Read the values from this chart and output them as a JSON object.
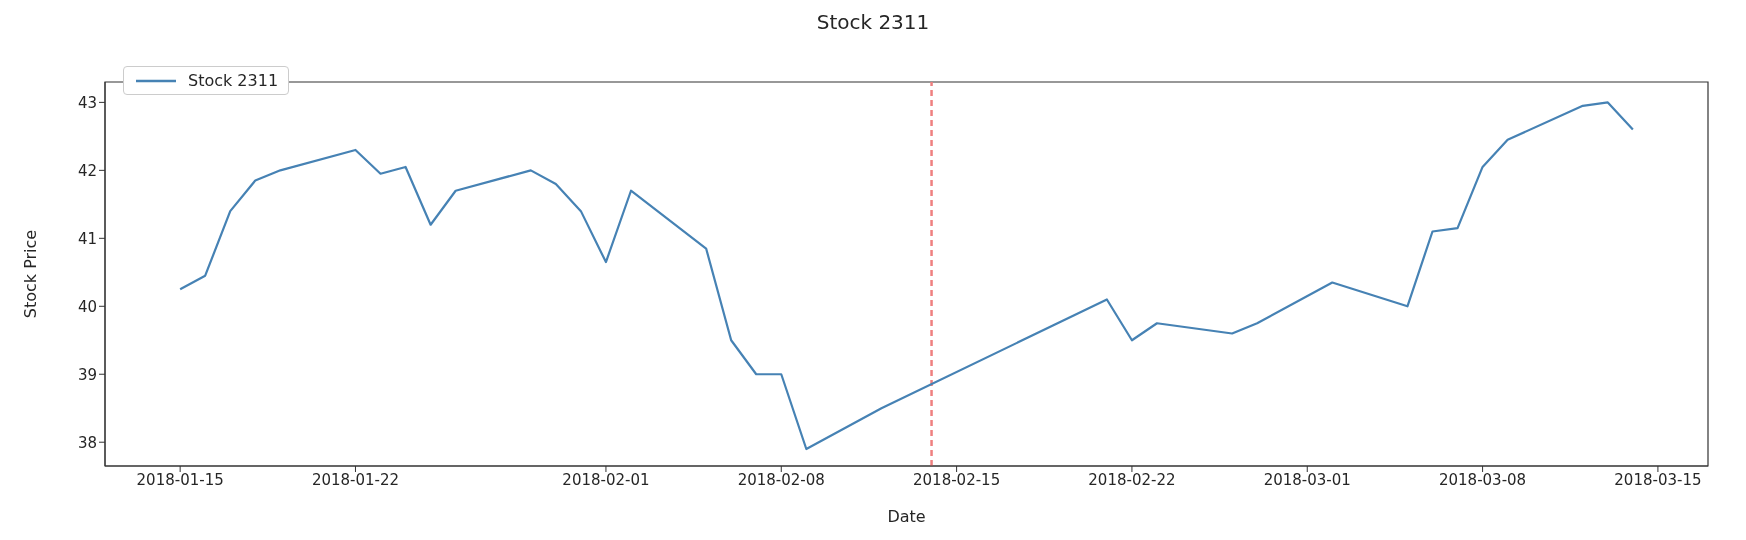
{
  "chart_data": {
    "type": "line",
    "title": "Stock 2311",
    "xlabel": "Date",
    "ylabel": "Stock Price",
    "x": [
      "2018-01-15",
      "2018-01-16",
      "2018-01-17",
      "2018-01-18",
      "2018-01-19",
      "2018-01-22",
      "2018-01-23",
      "2018-01-24",
      "2018-01-25",
      "2018-01-26",
      "2018-01-29",
      "2018-01-30",
      "2018-01-31",
      "2018-02-01",
      "2018-02-02",
      "2018-02-05",
      "2018-02-06",
      "2018-02-07",
      "2018-02-08",
      "2018-02-09",
      "2018-02-12",
      "2018-02-21",
      "2018-02-22",
      "2018-02-23",
      "2018-02-26",
      "2018-02-27",
      "2018-03-02",
      "2018-03-05",
      "2018-03-06",
      "2018-03-07",
      "2018-03-08",
      "2018-03-09",
      "2018-03-12",
      "2018-03-13",
      "2018-03-14"
    ],
    "series": [
      {
        "name": "Stock 2311",
        "color": "#4682b4",
        "values": [
          40.25,
          40.45,
          41.4,
          41.85,
          42.0,
          42.3,
          41.95,
          42.05,
          41.2,
          41.7,
          42.0,
          41.8,
          41.4,
          40.65,
          41.7,
          40.85,
          39.5,
          39.0,
          39.0,
          37.9,
          38.5,
          40.1,
          39.5,
          39.75,
          39.6,
          39.75,
          40.35,
          40.0,
          41.1,
          41.15,
          42.05,
          42.45,
          42.95,
          43.0,
          42.6
        ]
      }
    ],
    "xlim": [
      "2018-01-12",
      "2018-03-17"
    ],
    "xticks": [
      "2018-01-15",
      "2018-01-22",
      "2018-02-01",
      "2018-02-08",
      "2018-02-15",
      "2018-02-22",
      "2018-03-01",
      "2018-03-08",
      "2018-03-15"
    ],
    "ylim": [
      37.65,
      43.3
    ],
    "yticks": [
      38,
      39,
      40,
      41,
      42,
      43
    ],
    "ref_lines": [
      {
        "axis": "x",
        "value": "2018-02-14",
        "color": "#ee8080",
        "line_style": "dashed"
      }
    ],
    "legend": "top left",
    "grid": false,
    "marker": "none",
    "line_style": "solid"
  }
}
